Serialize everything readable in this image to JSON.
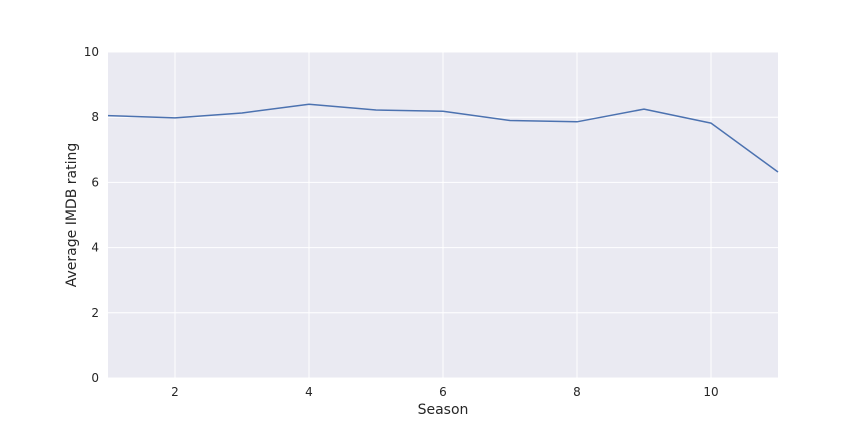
{
  "chart_data": {
    "type": "line",
    "title": "",
    "xlabel": "Season",
    "ylabel": "Average IMDB rating",
    "xlim": [
      1,
      11
    ],
    "ylim": [
      0,
      10
    ],
    "x_ticks": [
      2,
      4,
      6,
      8,
      10
    ],
    "y_ticks": [
      0,
      2,
      4,
      6,
      8,
      10
    ],
    "grid": true,
    "legend": "none",
    "series": [
      {
        "color": "#4c72b0",
        "x": [
          1,
          2,
          3,
          4,
          5,
          6,
          7,
          8,
          9,
          10,
          11
        ],
        "y": [
          8.05,
          7.98,
          8.13,
          8.4,
          8.22,
          8.18,
          7.9,
          7.86,
          8.25,
          7.82,
          6.32
        ]
      }
    ],
    "colors": {
      "plot_background": "#eaeaf2",
      "grid": "#ffffff",
      "line": "#4c72b0"
    }
  }
}
